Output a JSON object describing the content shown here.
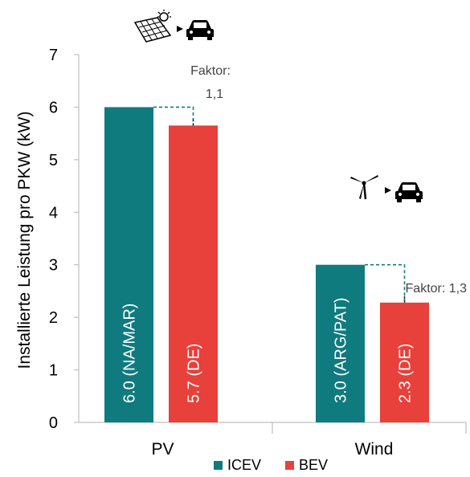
{
  "chart_data": {
    "type": "bar",
    "ylabel": "Installierte Leistung pro PKW  (kW)",
    "ylim": [
      0,
      7
    ],
    "yticks": [
      "0",
      "1",
      "2",
      "3",
      "4",
      "5",
      "6",
      "7"
    ],
    "categories": [
      "PV",
      "Wind"
    ],
    "series": [
      {
        "name": "ICEV",
        "color": "#0f7b7f",
        "values": [
          6.0,
          3.0
        ],
        "labels": [
          "6.0 (NA/MAR)",
          "3.0 (ARG/PAT)"
        ]
      },
      {
        "name": "BEV",
        "color": "#e8403a",
        "values": [
          5.65,
          2.28
        ],
        "labels": [
          "5.7 (DE)",
          "2.3 (DE)"
        ]
      }
    ],
    "annotations": [
      {
        "lines": [
          "Faktor:",
          "1,1"
        ],
        "category": "PV"
      },
      {
        "lines": [
          "Faktor: 1,3"
        ],
        "category": "Wind"
      }
    ],
    "icons": [
      "solar-panel-to-car-icon",
      "wind-turbine-to-car-icon"
    ],
    "legend_position": "bottom",
    "grid": false
  }
}
